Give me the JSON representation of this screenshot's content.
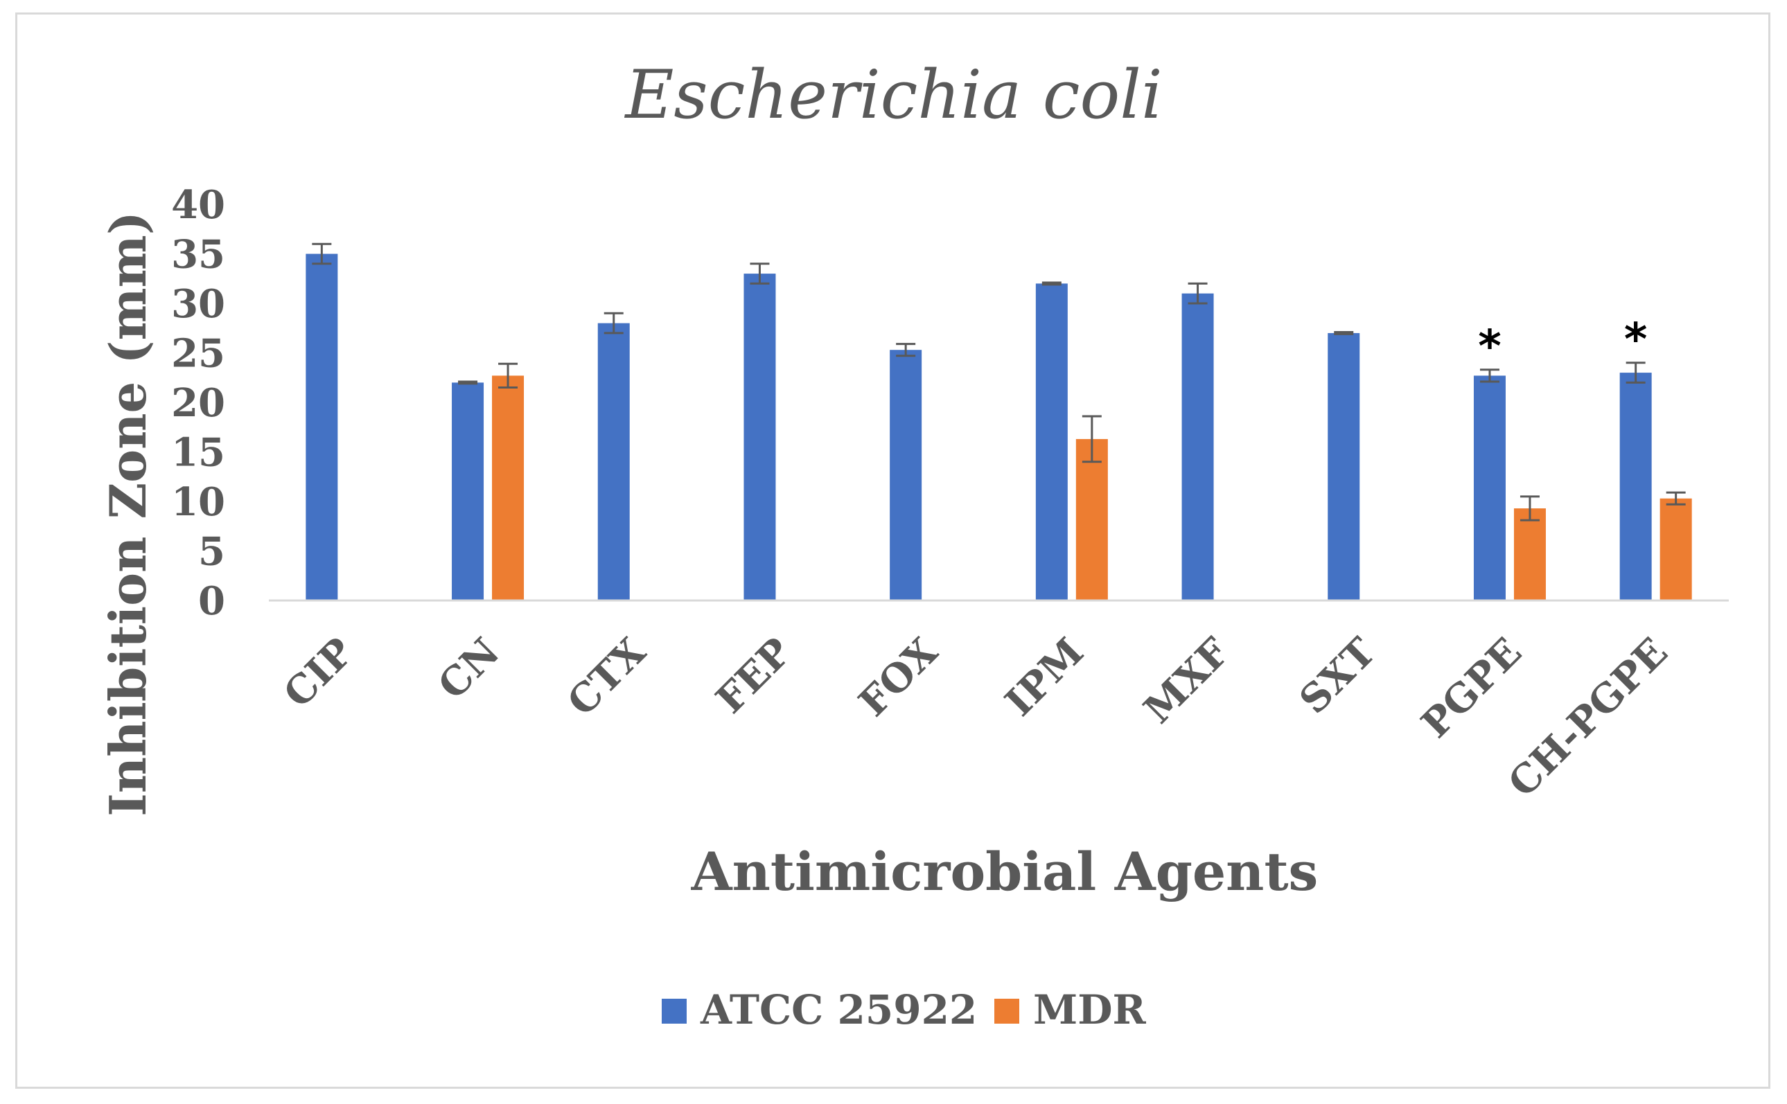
{
  "chart_data": {
    "type": "bar",
    "title": "Escherichia coli",
    "xlabel": "Antimicrobial Agents",
    "ylabel": "Inhibition Zone (mm)",
    "ylim": [
      0,
      40
    ],
    "yticks": [
      0,
      5,
      10,
      15,
      20,
      25,
      30,
      35,
      40
    ],
    "grid": false,
    "legend_position": "bottom",
    "categories": [
      "CIP",
      "CN",
      "CTX",
      "FEP",
      "FOX",
      "IPM",
      "MXF",
      "SXT",
      "PGPE",
      "CH-PGPE"
    ],
    "series": [
      {
        "name": "ATCC 25922",
        "color": "#4472C4",
        "values": [
          35,
          22,
          28,
          33,
          25.3,
          32,
          31,
          27,
          22.7,
          23
        ],
        "errors": [
          1,
          0.1,
          1,
          1,
          0.6,
          0.1,
          1,
          0.1,
          0.6,
          1
        ]
      },
      {
        "name": "MDR",
        "color": "#ED7D31",
        "values": [
          null,
          22.7,
          null,
          null,
          null,
          16.3,
          null,
          null,
          9.3,
          10.3
        ],
        "errors": [
          null,
          1.2,
          null,
          null,
          null,
          2.3,
          null,
          null,
          1.2,
          0.6
        ]
      }
    ],
    "annotations": [
      {
        "category": "PGPE",
        "series": "ATCC 25922",
        "text": "*"
      },
      {
        "category": "CH-PGPE",
        "series": "ATCC 25922",
        "text": "*"
      }
    ]
  }
}
